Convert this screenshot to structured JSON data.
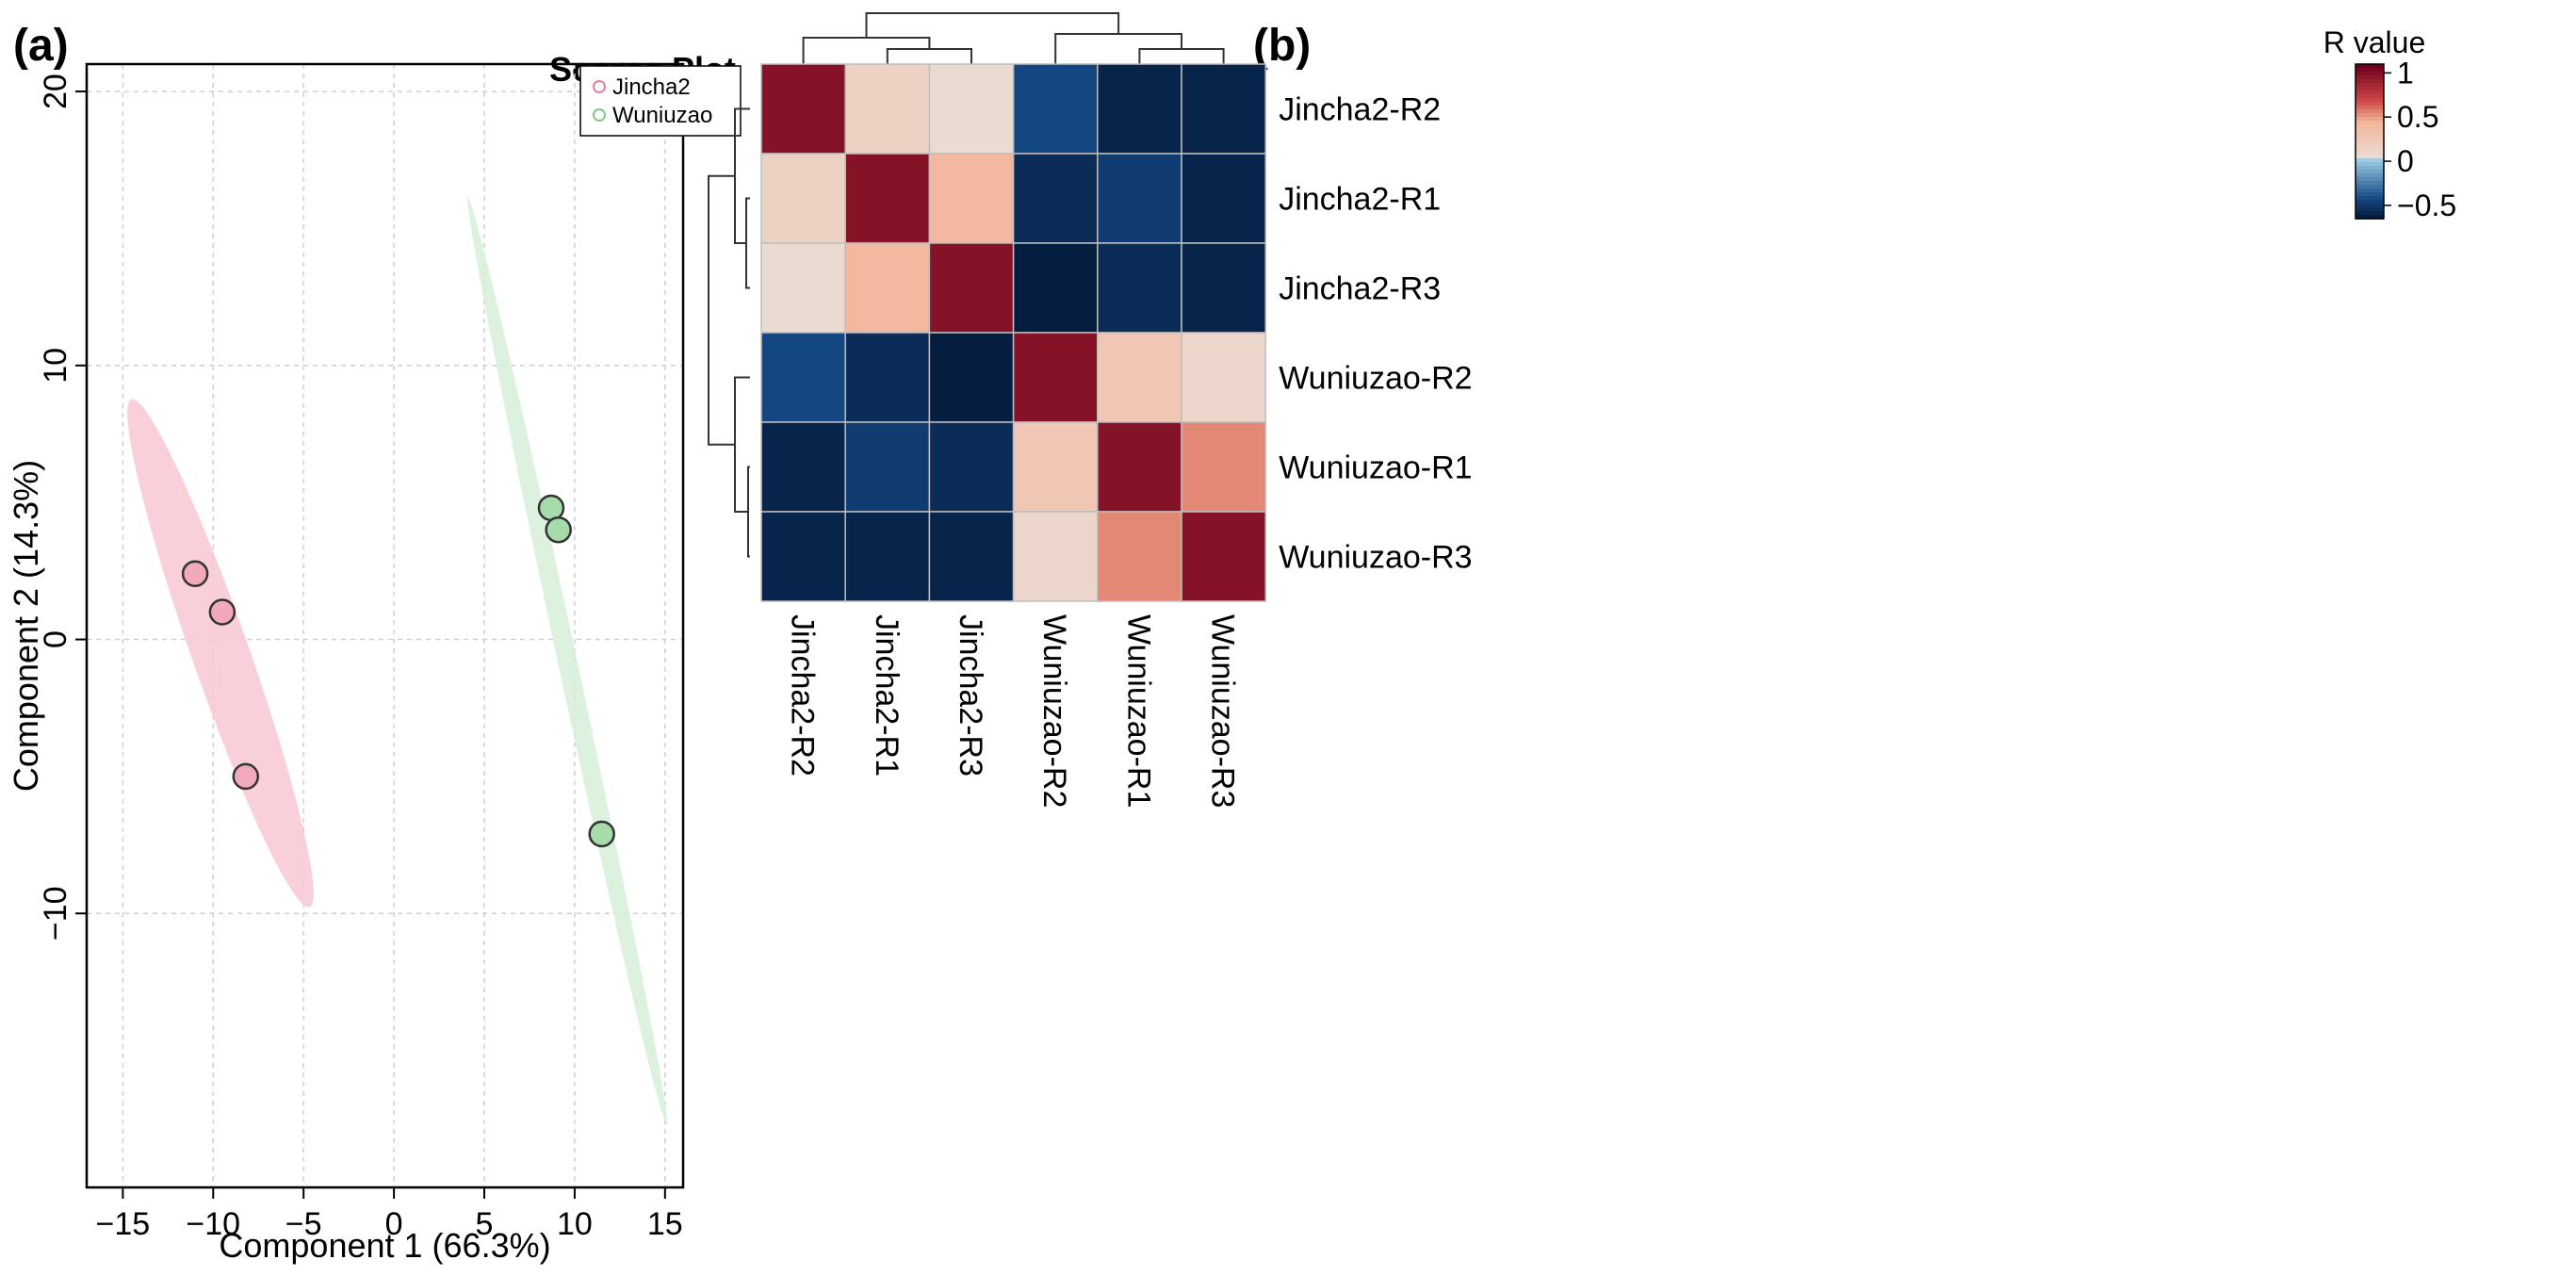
{
  "panels": {
    "a_label": "(a)",
    "b_label": "(b)"
  },
  "chart_data": [
    {
      "type": "scatter",
      "title": "Scores Plot",
      "xlabel": "Component 1 (66.3%)",
      "ylabel": "Component 2 (14.3%)",
      "xlim": [
        -17,
        16
      ],
      "ylim": [
        -20,
        21
      ],
      "xticks": [
        -15,
        -10,
        -5,
        0,
        5,
        10,
        15
      ],
      "yticks": [
        -10,
        0,
        10,
        20
      ],
      "grid": true,
      "legend_position": "top-right",
      "series": [
        {
          "name": "Jincha2",
          "color": "#e8809a",
          "fill": "#f2a9b9",
          "ellipse_fill": "#f8c8d4",
          "points": [
            [
              -11.0,
              2.4
            ],
            [
              -9.5,
              1.0
            ],
            [
              -8.2,
              -5.0
            ]
          ],
          "ellipse": {
            "cx": -9.6,
            "cy": -0.5,
            "semi_major": 10.5,
            "semi_minor": 1.4,
            "angle_deg": -62
          }
        },
        {
          "name": "Wuniuzao",
          "color": "#7fc98a",
          "fill": "#a6dca9",
          "ellipse_fill": "#d6eed8",
          "points": [
            [
              8.7,
              4.8
            ],
            [
              9.1,
              4.0
            ],
            [
              11.5,
              -7.1
            ]
          ],
          "ellipse": {
            "cx": 9.6,
            "cy": -0.8,
            "semi_major": 17.8,
            "semi_minor": 0.5,
            "angle_deg": -72
          }
        }
      ]
    },
    {
      "type": "heatmap",
      "legend_title": "R value",
      "colorbar_ticks": [
        1,
        0.5,
        0,
        -0.5
      ],
      "colorbar_tick_labels": [
        "1",
        "0.5",
        "0",
        "−0.5"
      ],
      "colorbar_range": [
        -0.65,
        1.1
      ],
      "row_labels": [
        "Jincha2-R2",
        "Jincha2-R1",
        "Jincha2-R3",
        "Wuniuzao-R2",
        "Wuniuzao-R1",
        "Wuniuzao-R3"
      ],
      "col_labels": [
        "Jincha2-R2",
        "Jincha2-R1",
        "Jincha2-R3",
        "Wuniuzao-R2",
        "Wuniuzao-R1",
        "Wuniuzao-R3"
      ],
      "values": [
        [
          1.0,
          0.15,
          0.05,
          -0.45,
          -0.62,
          -0.62
        ],
        [
          0.15,
          1.0,
          0.4,
          -0.58,
          -0.5,
          -0.62
        ],
        [
          0.05,
          0.4,
          1.0,
          -0.65,
          -0.58,
          -0.62
        ],
        [
          -0.45,
          -0.58,
          -0.65,
          1.0,
          0.25,
          0.1
        ],
        [
          -0.62,
          -0.5,
          -0.58,
          0.25,
          1.0,
          0.55
        ],
        [
          -0.62,
          -0.62,
          -0.62,
          0.1,
          0.55,
          1.0
        ]
      ]
    }
  ]
}
